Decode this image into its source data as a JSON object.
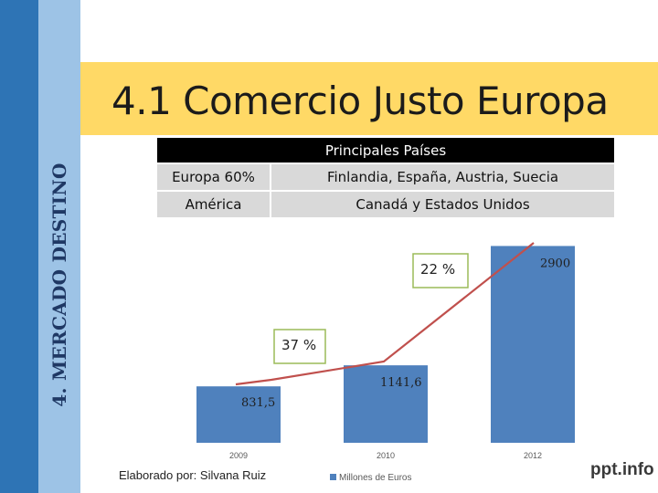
{
  "sidebar": {
    "title": "4. MERCADO DESTINO"
  },
  "header": {
    "title": "4.1 Comercio Justo Europa"
  },
  "table": {
    "header": "Principales Países",
    "rows": [
      {
        "region": "Europa  60%",
        "countries": "Finlandia, España, Austria, Suecia"
      },
      {
        "region": "América",
        "countries": "Canadá y Estados  Unidos"
      }
    ]
  },
  "chart_data": {
    "type": "bar",
    "categories": [
      "2009",
      "2010",
      "2012"
    ],
    "values": [
      831.5,
      1141.6,
      2900
    ],
    "data_labels": [
      "831,5",
      "1141,6",
      "2900"
    ],
    "annotations": [
      "37 %",
      "22 %"
    ],
    "legend": "Millones de Euros",
    "trend_line": true,
    "title": "",
    "xlabel": "",
    "ylabel": "",
    "ylim": [
      0,
      3000
    ],
    "colors": {
      "bar": "#4f81bd",
      "line": "#c0504d",
      "annotation_border": "#9bbb59"
    }
  },
  "footer": {
    "credit": "Elaborado por: Silvana Ruiz"
  },
  "watermark": "ppt.info"
}
